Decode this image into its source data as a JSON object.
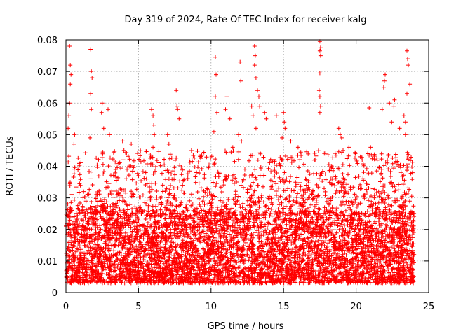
{
  "chart_data": {
    "type": "scatter",
    "title": "Day 319 of 2024, Rate Of TEC Index for receiver kalg",
    "xlabel": "GPS time / hours",
    "ylabel": "ROTI / TECUs",
    "xlim": [
      0,
      25
    ],
    "ylim": [
      0,
      0.08
    ],
    "grid": true,
    "marker": "plus",
    "x_ticks": [
      0,
      5,
      10,
      15,
      20,
      25
    ],
    "x_tick_labels": [
      "0",
      "5",
      "10",
      "15",
      "20",
      "25"
    ],
    "y_ticks": [
      0,
      0.01,
      0.02,
      0.03,
      0.04,
      0.05,
      0.06,
      0.07,
      0.08
    ],
    "y_tick_labels": [
      "0",
      "0.01",
      "0.02",
      "0.03",
      "0.04",
      "0.05",
      "0.06",
      "0.07",
      "0.08"
    ],
    "series": [
      {
        "name": "ROTI",
        "color": "#ff0000",
        "x_range": [
          0,
          24
        ],
        "typical_range": [
          0.003,
          0.025
        ],
        "points": [
          [
            0.25,
            0.078
          ],
          [
            0.3,
            0.072
          ],
          [
            0.35,
            0.069
          ],
          [
            0.3,
            0.066
          ],
          [
            0.25,
            0.06
          ],
          [
            0.2,
            0.056
          ],
          [
            0.15,
            0.052
          ],
          [
            0.6,
            0.05
          ],
          [
            0.55,
            0.047
          ],
          [
            1.7,
            0.077
          ],
          [
            1.75,
            0.07
          ],
          [
            1.8,
            0.068
          ],
          [
            1.7,
            0.063
          ],
          [
            1.75,
            0.058
          ],
          [
            1.65,
            0.049
          ],
          [
            2.5,
            0.06
          ],
          [
            2.45,
            0.057
          ],
          [
            2.9,
            0.058
          ],
          [
            3.0,
            0.05
          ],
          [
            2.6,
            0.052
          ],
          [
            3.9,
            0.048
          ],
          [
            4.0,
            0.045
          ],
          [
            4.5,
            0.047
          ],
          [
            5.0,
            0.037
          ],
          [
            5.5,
            0.038
          ],
          [
            5.9,
            0.058
          ],
          [
            6.0,
            0.056
          ],
          [
            6.05,
            0.053
          ],
          [
            6.1,
            0.05
          ],
          [
            6.0,
            0.046
          ],
          [
            5.85,
            0.043
          ],
          [
            7.0,
            0.05
          ],
          [
            7.1,
            0.047
          ],
          [
            7.6,
            0.064
          ],
          [
            7.65,
            0.059
          ],
          [
            7.7,
            0.058
          ],
          [
            7.8,
            0.055
          ],
          [
            8.5,
            0.042
          ],
          [
            9.0,
            0.038
          ],
          [
            10.3,
            0.0745
          ],
          [
            10.35,
            0.069
          ],
          [
            10.3,
            0.062
          ],
          [
            10.4,
            0.057
          ],
          [
            10.2,
            0.051
          ],
          [
            11.1,
            0.062
          ],
          [
            11.0,
            0.058
          ],
          [
            11.3,
            0.055
          ],
          [
            11.5,
            0.046
          ],
          [
            12.0,
            0.073
          ],
          [
            12.05,
            0.067
          ],
          [
            11.9,
            0.05
          ],
          [
            12.1,
            0.048
          ],
          [
            12.8,
            0.059
          ],
          [
            12.9,
            0.056
          ],
          [
            13.0,
            0.078
          ],
          [
            13.05,
            0.075
          ],
          [
            13.0,
            0.072
          ],
          [
            13.1,
            0.068
          ],
          [
            13.2,
            0.064
          ],
          [
            13.3,
            0.062
          ],
          [
            13.35,
            0.059
          ],
          [
            13.1,
            0.052
          ],
          [
            13.7,
            0.057
          ],
          [
            13.8,
            0.055
          ],
          [
            14.5,
            0.056
          ],
          [
            15.0,
            0.057
          ],
          [
            15.05,
            0.054
          ],
          [
            15.1,
            0.052
          ],
          [
            14.9,
            0.049
          ],
          [
            15.5,
            0.048
          ],
          [
            16.0,
            0.046
          ],
          [
            17.5,
            0.0795
          ],
          [
            17.55,
            0.0775
          ],
          [
            17.5,
            0.0765
          ],
          [
            17.55,
            0.075
          ],
          [
            17.5,
            0.0695
          ],
          [
            17.45,
            0.064
          ],
          [
            17.5,
            0.062
          ],
          [
            17.55,
            0.059
          ],
          [
            17.5,
            0.057
          ],
          [
            18.8,
            0.052
          ],
          [
            18.9,
            0.05
          ],
          [
            19.0,
            0.049
          ],
          [
            19.1,
            0.045
          ],
          [
            19.5,
            0.046
          ],
          [
            20.9,
            0.0585
          ],
          [
            20.8,
            0.044
          ],
          [
            21.0,
            0.046
          ],
          [
            21.8,
            0.058
          ],
          [
            21.9,
            0.065
          ],
          [
            22.0,
            0.069
          ],
          [
            21.95,
            0.067
          ],
          [
            22.3,
            0.06
          ],
          [
            22.45,
            0.054
          ],
          [
            22.6,
            0.059
          ],
          [
            22.65,
            0.061
          ],
          [
            23.0,
            0.052
          ],
          [
            23.3,
            0.056
          ],
          [
            23.4,
            0.054
          ],
          [
            23.5,
            0.0765
          ],
          [
            23.55,
            0.074
          ],
          [
            23.6,
            0.072
          ],
          [
            23.7,
            0.066
          ],
          [
            23.5,
            0.063
          ],
          [
            23.4,
            0.05
          ]
        ]
      }
    ]
  }
}
